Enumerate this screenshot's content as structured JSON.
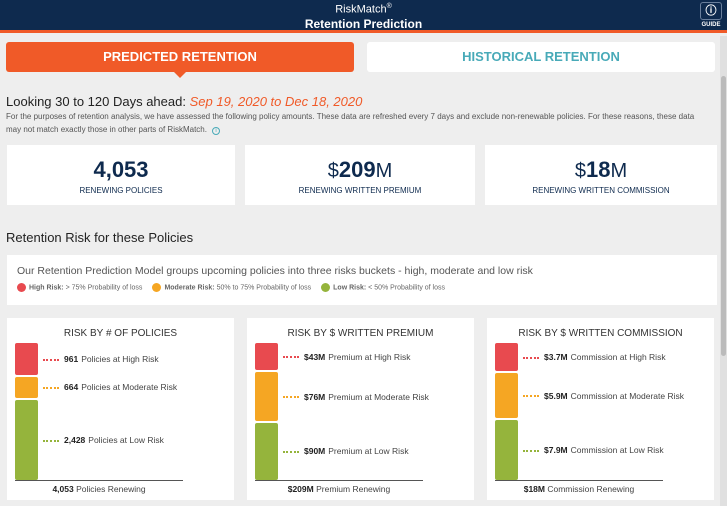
{
  "header": {
    "brand": "RiskMatch",
    "brand_mark": "®",
    "title": "Retention Prediction",
    "guide_label": "GUIDE",
    "guide_icon": "info-icon"
  },
  "tabs": [
    {
      "label": "PREDICTED RETENTION",
      "active": true
    },
    {
      "label": "HISTORICAL RETENTION",
      "active": false
    }
  ],
  "intro": {
    "heading": "Looking 30 to 120 Days ahead: ",
    "dates": "Sep 19, 2020 to Dec 18, 2020",
    "description": "For the purposes of retention analysis, we have assessed the following policy amounts. These data are refreshed every 7 days and exclude non-renewable policies. For these reasons, these data may not match exactly those in other parts of RiskMatch."
  },
  "kpis": [
    {
      "prefix": "",
      "value": "4,053",
      "unit": "",
      "label": "RENEWING POLICIES"
    },
    {
      "prefix": "$",
      "value": "209",
      "unit": "M",
      "label": "RENEWING WRITTEN PREMIUM"
    },
    {
      "prefix": "$",
      "value": "18",
      "unit": "M",
      "label": "RENEWING WRITTEN COMMISSION"
    }
  ],
  "section_title": "Retention Risk for these Policies",
  "model": {
    "text": "Our Retention Prediction Model groups upcoming policies into three risks buckets - high, moderate and low risk",
    "legend": [
      {
        "name": "High Risk:",
        "desc": "> 75% Probability of loss",
        "color": "#e84a4f"
      },
      {
        "name": "Moderate Risk:",
        "desc": "50% to 75% Probability of loss",
        "color": "#f5a623"
      },
      {
        "name": "Low Risk:",
        "desc": "< 50% Probability of loss",
        "color": "#95b43c"
      }
    ]
  },
  "chart_data": [
    {
      "type": "bar",
      "stacked": true,
      "title": "RISK BY # OF POLICIES",
      "categories": [
        "High",
        "Moderate",
        "Low"
      ],
      "values": [
        961,
        664,
        2428
      ],
      "value_labels": [
        "961",
        "664",
        "2,428"
      ],
      "labels": [
        "Policies at High Risk",
        "Policies at Moderate Risk",
        "Policies at Low Risk"
      ],
      "total_value": "4,053",
      "total_label": "Policies Renewing"
    },
    {
      "type": "bar",
      "stacked": true,
      "title": "RISK BY $ WRITTEN PREMIUM",
      "categories": [
        "High",
        "Moderate",
        "Low"
      ],
      "values": [
        43,
        76,
        90
      ],
      "value_labels": [
        "$43M",
        "$76M",
        "$90M"
      ],
      "labels": [
        "Premium at High Risk",
        "Premium at Moderate Risk",
        "Premium at Low Risk"
      ],
      "total_value": "$209M",
      "total_label": "Premium Renewing"
    },
    {
      "type": "bar",
      "stacked": true,
      "title": "RISK BY $ WRITTEN COMMISSION",
      "categories": [
        "High",
        "Moderate",
        "Low"
      ],
      "values": [
        3.7,
        5.9,
        7.9
      ],
      "value_labels": [
        "$3.7M",
        "$5.9M",
        "$7.9M"
      ],
      "labels": [
        "Commission at High Risk",
        "Commission at Moderate Risk",
        "Commission at Low Risk"
      ],
      "total_value": "$18M",
      "total_label": "Commission Renewing"
    }
  ],
  "colors": {
    "navy": "#0e2a4e",
    "orange": "#f05a28",
    "teal": "#48aab8",
    "high": "#e84a4f",
    "moderate": "#f5a623",
    "low": "#95b43c"
  }
}
